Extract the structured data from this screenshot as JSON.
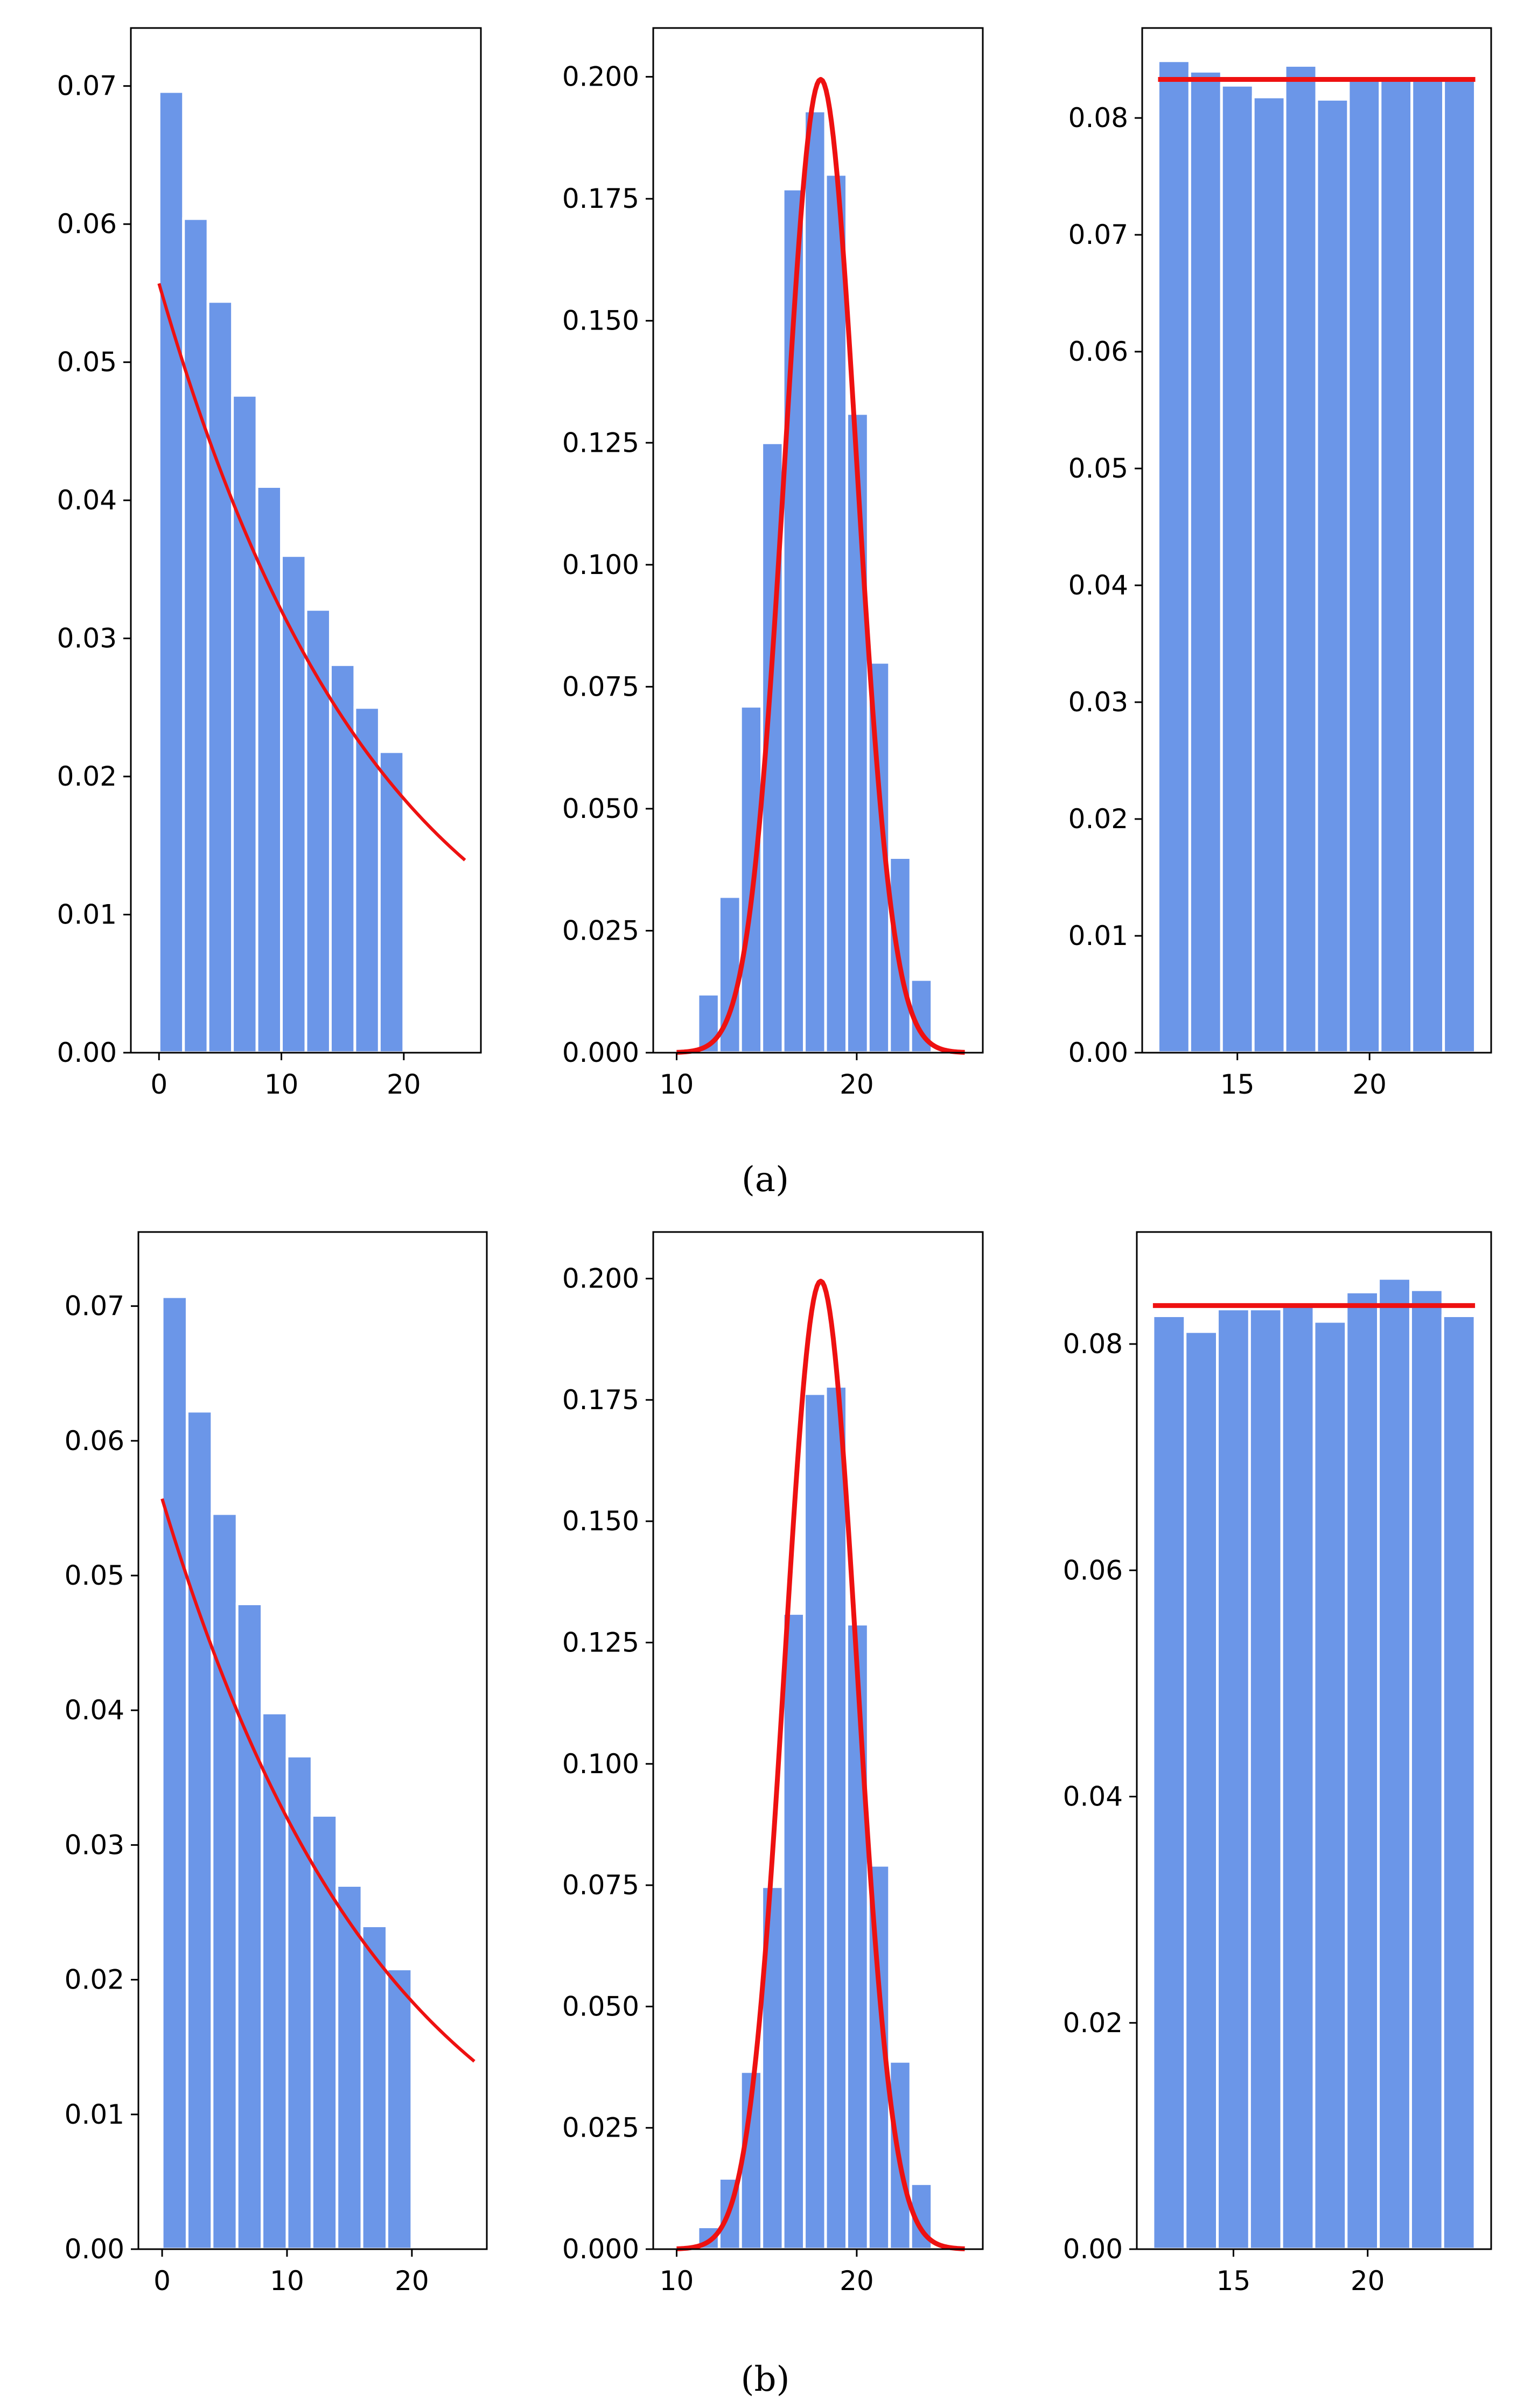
{
  "figure": {
    "captions": [
      "(a)",
      "(b)"
    ]
  },
  "colors": {
    "bar": "#6b96e8",
    "bar_edge": "#ffffff",
    "curve": "#ee1111",
    "axis": "#000000"
  },
  "chart_data": [
    {
      "id": "a-exponential",
      "group": "a",
      "type": "bar",
      "title": "",
      "xlabel": "",
      "ylabel": "",
      "bin_edges": [
        0,
        2,
        4,
        6,
        8,
        10,
        12,
        14,
        16,
        18,
        20,
        22,
        24
      ],
      "values": [
        0.0696,
        0.0604,
        0.0544,
        0.0476,
        0.041,
        0.036,
        0.0321,
        0.0281,
        0.025,
        0.0218,
        0.0,
        0.0
      ],
      "xlim": [
        -2.3,
        26.3
      ],
      "ylim": [
        0,
        0.0742
      ],
      "xticks": [
        0,
        10,
        20
      ],
      "xtick_labels": [
        "0",
        "10",
        "20"
      ],
      "yticks": [
        0,
        0.01,
        0.02,
        0.03,
        0.04,
        0.05,
        0.06,
        0.07
      ],
      "ytick_labels": [
        "0.00",
        "0.01",
        "0.02",
        "0.03",
        "0.04",
        "0.05",
        "0.06",
        "0.07"
      ],
      "curve": {
        "kind": "exponential",
        "a": 0.0557,
        "rate": 0.0554,
        "x_range": [
          0,
          25
        ]
      }
    },
    {
      "id": "a-normal",
      "group": "a",
      "type": "bar",
      "title": "",
      "xlabel": "",
      "ylabel": "",
      "bin_edges": [
        10,
        11.18,
        12.36,
        13.55,
        14.73,
        15.91,
        17.09,
        18.27,
        19.45,
        20.64,
        21.82,
        23.0,
        24.18
      ],
      "values": [
        0.0,
        0.012,
        0.032,
        0.071,
        0.125,
        0.177,
        0.193,
        0.18,
        0.131,
        0.08,
        0.04,
        0.015
      ],
      "xlim": [
        8.7,
        27.0
      ],
      "ylim": [
        0,
        0.21
      ],
      "xticks": [
        10,
        20
      ],
      "xtick_labels": [
        "10",
        "20"
      ],
      "yticks": [
        0,
        0.025,
        0.05,
        0.075,
        0.1,
        0.125,
        0.15,
        0.175,
        0.2
      ],
      "ytick_labels": [
        "0.000",
        "0.025",
        "0.050",
        "0.075",
        "0.100",
        "0.125",
        "0.150",
        "0.175",
        "0.200"
      ],
      "curve": {
        "kind": "normal",
        "mu": 18,
        "sigma": 2,
        "x_range": [
          10,
          26
        ]
      }
    },
    {
      "id": "a-uniform",
      "group": "a",
      "type": "bar",
      "title": "",
      "xlabel": "",
      "ylabel": "",
      "bin_edges": [
        12,
        13.2,
        14.4,
        15.6,
        16.8,
        18.0,
        19.2,
        20.4,
        21.6,
        22.8,
        24
      ],
      "values": [
        0.0849,
        0.084,
        0.0828,
        0.0818,
        0.0845,
        0.0816,
        0.0834,
        0.0834,
        0.0834,
        0.0834
      ],
      "xlim": [
        11.4,
        24.6
      ],
      "ylim": [
        0,
        0.0877
      ],
      "xticks": [
        15,
        20
      ],
      "xtick_labels": [
        "15",
        "20"
      ],
      "yticks": [
        0,
        0.01,
        0.02,
        0.03,
        0.04,
        0.05,
        0.06,
        0.07,
        0.08
      ],
      "ytick_labels": [
        "0.00",
        "0.01",
        "0.02",
        "0.03",
        "0.04",
        "0.05",
        "0.06",
        "0.07",
        "0.08"
      ],
      "curve": {
        "kind": "uniform",
        "value": 0.0833,
        "x_range": [
          12,
          24
        ]
      }
    },
    {
      "id": "b-exponential",
      "group": "b",
      "type": "bar",
      "title": "",
      "xlabel": "",
      "ylabel": "",
      "bin_edges": [
        0,
        2,
        4,
        6,
        8,
        10,
        12,
        14,
        16,
        18,
        20,
        22,
        24
      ],
      "values": [
        0.0707,
        0.0622,
        0.0546,
        0.0479,
        0.0398,
        0.0366,
        0.0322,
        0.027,
        0.024,
        0.0208,
        0.0,
        0.0
      ],
      "xlim": [
        -1.9,
        26.0
      ],
      "ylim": [
        0,
        0.0755
      ],
      "xticks": [
        0,
        10,
        20
      ],
      "xtick_labels": [
        "0",
        "10",
        "20"
      ],
      "yticks": [
        0,
        0.01,
        0.02,
        0.03,
        0.04,
        0.05,
        0.06,
        0.07
      ],
      "ytick_labels": [
        "0.00",
        "0.01",
        "0.02",
        "0.03",
        "0.04",
        "0.05",
        "0.06",
        "0.07"
      ],
      "curve": {
        "kind": "exponential",
        "a": 0.0557,
        "rate": 0.0554,
        "x_range": [
          0,
          25
        ]
      }
    },
    {
      "id": "b-normal",
      "group": "b",
      "type": "bar",
      "title": "",
      "xlabel": "",
      "ylabel": "",
      "bin_edges": [
        10,
        11.18,
        12.36,
        13.55,
        14.73,
        15.91,
        17.09,
        18.27,
        19.45,
        20.64,
        21.82,
        23.0,
        24.18
      ],
      "values": [
        0.0,
        0.0046,
        0.0146,
        0.0366,
        0.0747,
        0.131,
        0.1763,
        0.1778,
        0.1288,
        0.0791,
        0.0387,
        0.0135
      ],
      "xlim": [
        8.7,
        27.0
      ],
      "ylim": [
        0,
        0.2096
      ],
      "xticks": [
        10,
        20
      ],
      "xtick_labels": [
        "10",
        "20"
      ],
      "yticks": [
        0,
        0.025,
        0.05,
        0.075,
        0.1,
        0.125,
        0.15,
        0.175,
        0.2
      ],
      "ytick_labels": [
        "0.000",
        "0.025",
        "0.050",
        "0.075",
        "0.100",
        "0.125",
        "0.150",
        "0.175",
        "0.200"
      ],
      "curve": {
        "kind": "normal",
        "mu": 18,
        "sigma": 2,
        "x_range": [
          10,
          26
        ]
      }
    },
    {
      "id": "b-uniform",
      "group": "b",
      "type": "bar",
      "title": "",
      "xlabel": "",
      "ylabel": "",
      "bin_edges": [
        12,
        13.2,
        14.4,
        15.6,
        16.8,
        18.0,
        19.2,
        20.4,
        21.6,
        22.8,
        24
      ],
      "values": [
        0.0825,
        0.0811,
        0.0831,
        0.0831,
        0.0836,
        0.082,
        0.0846,
        0.0858,
        0.0848,
        0.0825
      ],
      "xlim": [
        11.4,
        24.6
      ],
      "ylim": [
        0,
        0.0899
      ],
      "xticks": [
        15,
        20
      ],
      "xtick_labels": [
        "15",
        "20"
      ],
      "yticks": [
        0,
        0.02,
        0.04,
        0.06,
        0.08
      ],
      "ytick_labels": [
        "0.00",
        "0.02",
        "0.04",
        "0.06",
        "0.08"
      ],
      "curve": {
        "kind": "uniform",
        "value": 0.0834,
        "x_range": [
          12,
          24
        ]
      }
    }
  ]
}
